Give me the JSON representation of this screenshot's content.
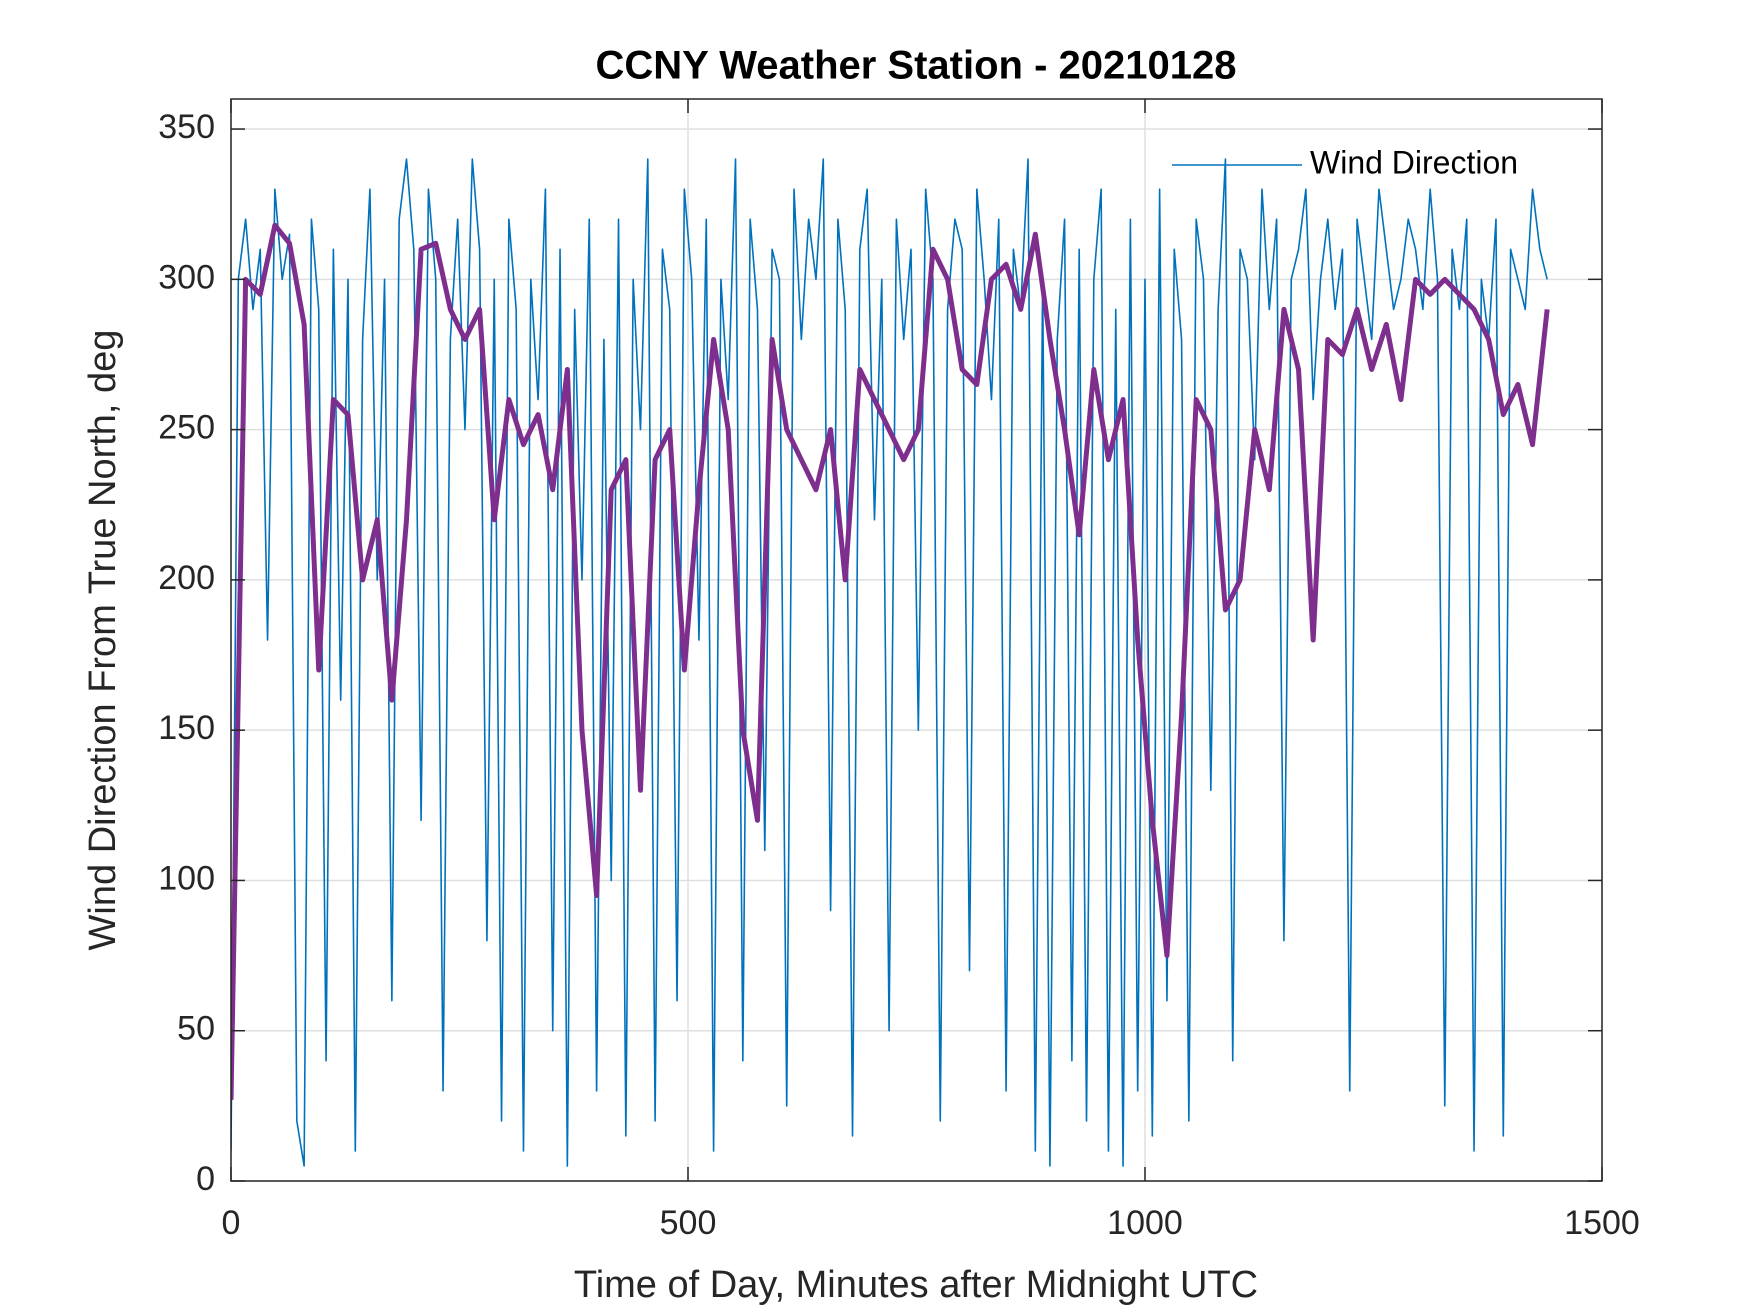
{
  "chart_data": {
    "type": "line",
    "title": "CCNY Weather Station - 20210128",
    "xlabel": "Time of Day, Minutes after Midnight UTC",
    "ylabel": "Wind Direction From True North, deg",
    "xlim": [
      0,
      1500
    ],
    "ylim": [
      0,
      360
    ],
    "xticks": [
      0,
      500,
      1000,
      1500
    ],
    "yticks": [
      0,
      50,
      100,
      150,
      200,
      250,
      300,
      350
    ],
    "grid": true,
    "legend": "upper right",
    "series": [
      {
        "name": "Wind Direction",
        "color": "#0072bd",
        "width": 1.6,
        "x": [
          0,
          8,
          16,
          24,
          32,
          40,
          48,
          56,
          64,
          72,
          80,
          88,
          96,
          104,
          112,
          120,
          128,
          136,
          144,
          152,
          160,
          168,
          176,
          184,
          192,
          200,
          208,
          216,
          224,
          232,
          240,
          248,
          256,
          264,
          272,
          280,
          288,
          296,
          304,
          312,
          320,
          328,
          336,
          344,
          352,
          360,
          368,
          376,
          384,
          392,
          400,
          408,
          416,
          424,
          432,
          440,
          448,
          456,
          464,
          472,
          480,
          488,
          496,
          504,
          512,
          520,
          528,
          536,
          544,
          552,
          560,
          568,
          576,
          584,
          592,
          600,
          608,
          616,
          624,
          632,
          640,
          648,
          656,
          664,
          672,
          680,
          688,
          696,
          704,
          712,
          720,
          728,
          736,
          744,
          752,
          760,
          768,
          776,
          784,
          792,
          800,
          808,
          816,
          824,
          832,
          840,
          848,
          856,
          864,
          872,
          880,
          888,
          896,
          904,
          912,
          920,
          928,
          936,
          944,
          952,
          960,
          968,
          976,
          984,
          992,
          1000,
          1008,
          1016,
          1024,
          1032,
          1040,
          1048,
          1056,
          1064,
          1072,
          1080,
          1088,
          1096,
          1104,
          1112,
          1120,
          1128,
          1136,
          1144,
          1152,
          1160,
          1168,
          1176,
          1184,
          1192,
          1200,
          1208,
          1216,
          1224,
          1232,
          1240,
          1248,
          1256,
          1264,
          1272,
          1280,
          1288,
          1296,
          1304,
          1312,
          1320,
          1328,
          1336,
          1344,
          1352,
          1360,
          1368,
          1376,
          1384,
          1392,
          1400,
          1408,
          1416,
          1424,
          1432,
          1440
        ],
        "values": [
          10,
          300,
          320,
          290,
          310,
          180,
          330,
          300,
          315,
          20,
          5,
          320,
          290,
          40,
          310,
          160,
          300,
          10,
          280,
          330,
          200,
          300,
          60,
          320,
          340,
          310,
          120,
          330,
          300,
          30,
          280,
          320,
          250,
          340,
          310,
          80,
          300,
          20,
          320,
          290,
          10,
          300,
          260,
          330,
          50,
          310,
          5,
          290,
          200,
          320,
          30,
          280,
          100,
          320,
          15,
          300,
          250,
          340,
          20,
          310,
          290,
          60,
          330,
          300,
          180,
          320,
          10,
          300,
          260,
          340,
          40,
          320,
          290,
          110,
          310,
          300,
          25,
          330,
          280,
          320,
          300,
          340,
          90,
          320,
          290,
          15,
          310,
          330,
          220,
          300,
          50,
          320,
          280,
          310,
          150,
          330,
          300,
          20,
          290,
          320,
          310,
          70,
          330,
          300,
          260,
          320,
          30,
          310,
          290,
          340,
          10,
          300,
          5,
          280,
          320,
          40,
          310,
          20,
          300,
          330,
          10,
          290,
          5,
          320,
          30,
          300,
          15,
          330,
          60,
          310,
          280,
          20,
          320,
          300,
          130,
          290,
          340,
          40,
          310,
          300,
          240,
          330,
          290,
          320,
          80,
          300,
          310,
          330,
          260,
          300,
          320,
          290,
          310,
          30,
          320,
          300,
          280,
          330,
          310,
          290,
          300,
          320,
          310,
          290,
          330,
          300,
          25,
          310,
          290,
          320,
          10,
          300,
          280,
          320,
          15,
          310,
          300,
          290,
          330,
          310,
          300
        ]
      },
      {
        "color": "#7e2f8e",
        "width": 5,
        "x": [
          0,
          16,
          32,
          48,
          64,
          80,
          96,
          112,
          128,
          144,
          160,
          176,
          192,
          208,
          224,
          240,
          256,
          272,
          288,
          304,
          320,
          336,
          352,
          368,
          384,
          400,
          416,
          432,
          448,
          464,
          480,
          496,
          512,
          528,
          544,
          560,
          576,
          592,
          608,
          624,
          640,
          656,
          672,
          688,
          704,
          720,
          736,
          752,
          768,
          784,
          800,
          816,
          832,
          848,
          864,
          880,
          896,
          912,
          928,
          944,
          960,
          976,
          992,
          1008,
          1024,
          1040,
          1056,
          1072,
          1088,
          1104,
          1120,
          1136,
          1152,
          1168,
          1184,
          1200,
          1216,
          1232,
          1248,
          1264,
          1280,
          1296,
          1312,
          1328,
          1344,
          1360,
          1376,
          1392,
          1408,
          1424,
          1440
        ],
        "values": [
          27,
          300,
          295,
          318,
          312,
          285,
          170,
          260,
          255,
          200,
          220,
          160,
          220,
          310,
          312,
          290,
          280,
          290,
          220,
          260,
          245,
          255,
          230,
          270,
          150,
          95,
          230,
          240,
          130,
          240,
          250,
          170,
          230,
          280,
          250,
          150,
          120,
          280,
          250,
          240,
          230,
          250,
          200,
          270,
          260,
          250,
          240,
          250,
          310,
          300,
          270,
          265,
          300,
          305,
          290,
          315,
          280,
          250,
          215,
          270,
          240,
          260,
          180,
          120,
          75,
          155,
          260,
          250,
          190,
          200,
          250,
          230,
          290,
          270,
          180,
          280,
          275,
          290,
          270,
          285,
          260,
          300,
          295,
          300,
          295,
          290,
          280,
          255,
          265,
          245,
          290
        ]
      }
    ]
  }
}
